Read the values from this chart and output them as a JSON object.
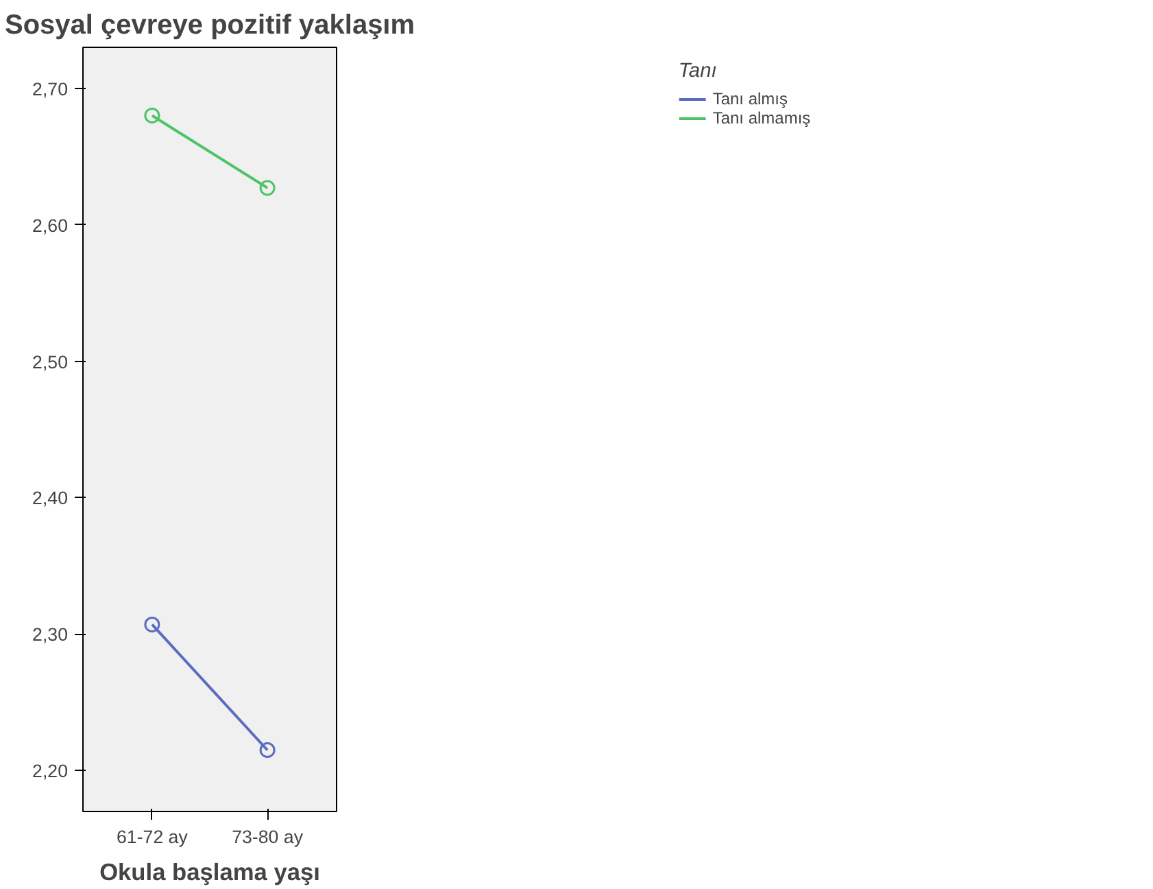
{
  "chart_data": {
    "type": "line",
    "title": "Sosyal çevreye pozitif yaklaşım",
    "xlabel": "Okula başlama yaşı",
    "categories": [
      "61-72 ay",
      "73-80 ay"
    ],
    "series": [
      {
        "name": "Tanı almış",
        "color": "#5b6cc0",
        "values": [
          2.307,
          2.215
        ]
      },
      {
        "name": "Tanı almamış",
        "color": "#4cc466",
        "values": [
          2.68,
          2.627
        ]
      }
    ],
    "ylim": [
      2.17,
      2.73
    ],
    "yticks": [
      {
        "value": 2.2,
        "label": "2,20"
      },
      {
        "value": 2.3,
        "label": "2,30"
      },
      {
        "value": 2.4,
        "label": "2,40"
      },
      {
        "value": 2.5,
        "label": "2,50"
      },
      {
        "value": 2.6,
        "label": "2,60"
      },
      {
        "value": 2.7,
        "label": "2,70"
      }
    ],
    "legend_title": "Tanı",
    "legend": "top right",
    "marker": "circle",
    "grid": false
  }
}
